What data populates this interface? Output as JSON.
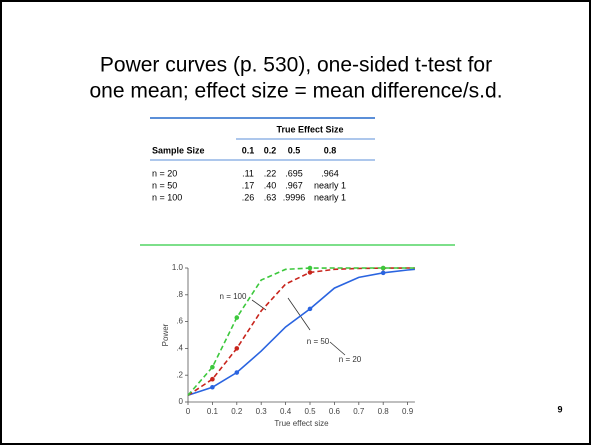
{
  "title_lines": [
    "Power curves (p. 530), one-sided t-test for",
    "one mean; effect size = mean difference/s.d."
  ],
  "page_number": "9",
  "table": {
    "group_header": "True Effect Size",
    "columns": [
      "Sample Size",
      "0.1",
      "0.2",
      "0.5",
      "0.8"
    ],
    "rows": [
      [
        "n = 20",
        ".11",
        ".22",
        ".695",
        ".964"
      ],
      [
        "n = 50",
        ".17",
        ".40",
        ".967",
        "nearly 1"
      ],
      [
        "n = 100",
        ".26",
        ".63",
        ".9996",
        "nearly 1"
      ]
    ]
  },
  "chart_data": {
    "type": "line",
    "x": [
      0,
      0.1,
      0.2,
      0.3,
      0.4,
      0.5,
      0.6,
      0.7,
      0.8,
      0.9,
      0.93
    ],
    "series": [
      {
        "name": "n = 20",
        "color": "#2a64e0",
        "dash": false,
        "values": [
          0.05,
          0.11,
          0.22,
          0.38,
          0.56,
          0.695,
          0.85,
          0.93,
          0.964,
          0.985,
          0.99
        ]
      },
      {
        "name": "n = 50",
        "color": "#c8241c",
        "dash": true,
        "values": [
          0.05,
          0.17,
          0.4,
          0.68,
          0.88,
          0.967,
          0.99,
          0.997,
          0.999,
          1.0,
          1.0
        ]
      },
      {
        "name": "n = 100",
        "color": "#3cc83c",
        "dash": true,
        "values": [
          0.05,
          0.26,
          0.63,
          0.91,
          0.99,
          0.9996,
          1.0,
          1.0,
          1.0,
          1.0,
          1.0
        ]
      }
    ],
    "xlabel": "True effect size",
    "ylabel": "Power",
    "xlim": [
      0,
      0.93
    ],
    "ylim": [
      0,
      1
    ],
    "xticks": [
      0,
      0.1,
      0.2,
      0.3,
      0.4,
      0.5,
      0.6,
      0.7,
      0.8,
      0.9
    ],
    "yticks": [
      0,
      {
        "value": 0.2,
        "label": ".2"
      },
      {
        "value": 0.4,
        "label": ".4"
      },
      {
        "value": 0.6,
        "label": ".6"
      },
      {
        "value": 0.8,
        "label": ".8"
      },
      {
        "value": 1,
        "label": "1.0"
      }
    ]
  }
}
